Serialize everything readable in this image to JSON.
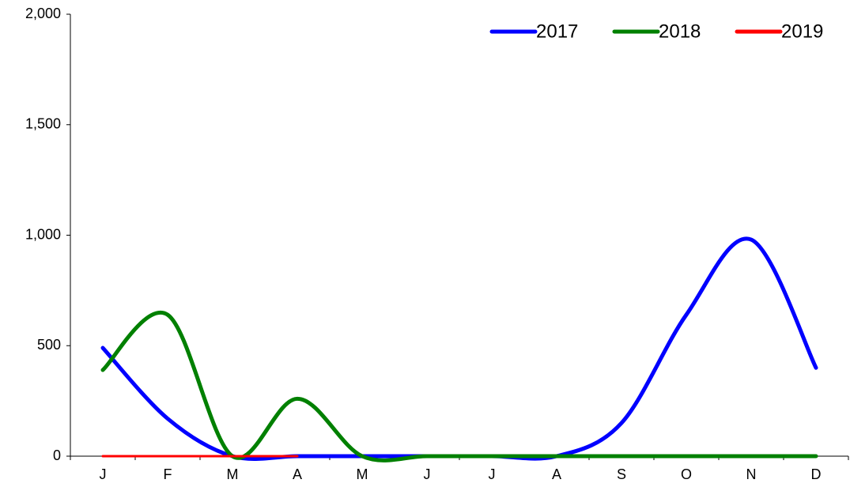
{
  "chart_data": {
    "type": "line",
    "categories": [
      "J",
      "F",
      "M",
      "A",
      "M",
      "J",
      "J",
      "A",
      "S",
      "O",
      "N",
      "D"
    ],
    "series": [
      {
        "name": "2017",
        "color": "#0000ff",
        "values": [
          490,
          170,
          0,
          0,
          0,
          0,
          0,
          0,
          150,
          640,
          980,
          400
        ]
      },
      {
        "name": "2018",
        "color": "#008000",
        "values": [
          390,
          640,
          0,
          260,
          0,
          0,
          0,
          0,
          0,
          0,
          0,
          0
        ]
      },
      {
        "name": "2019",
        "color": "#ff0000",
        "values": [
          0,
          0,
          0,
          0,
          null,
          null,
          null,
          null,
          null,
          null,
          null,
          null
        ]
      }
    ],
    "ylim": [
      0,
      2000
    ],
    "yticks": [
      0,
      500,
      {
        "value": 1000,
        "label": "1,000"
      },
      {
        "value": 1500,
        "label": "1,500"
      },
      {
        "value": 2000,
        "label": "2,000"
      }
    ],
    "smooth": true,
    "legend": "top-right"
  }
}
